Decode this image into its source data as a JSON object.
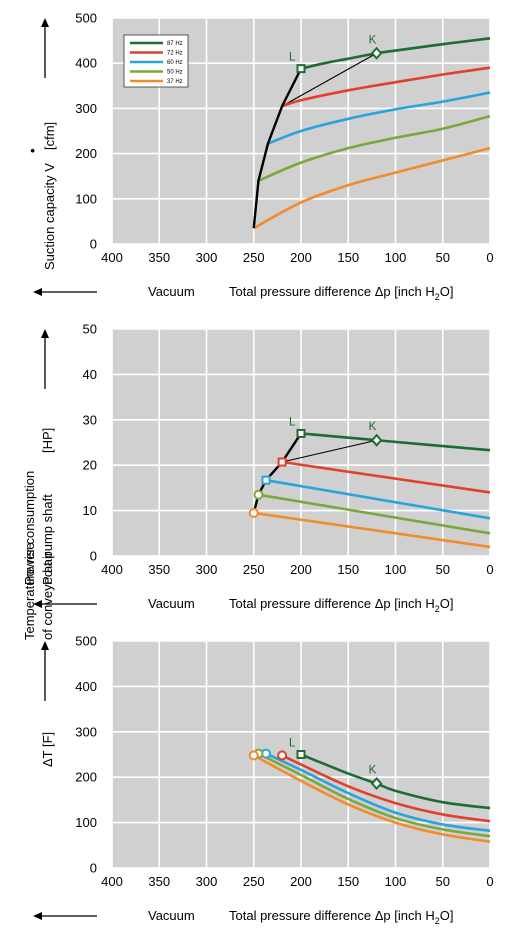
{
  "colors": {
    "87 Hz": "#1e6b34",
    "72 Hz": "#e2402d",
    "60 Hz": "#2aa3dc",
    "50 Hz": "#7aa83c",
    "37 Hz": "#f28a2e",
    "plot_bg": "#d0d0d0",
    "grid": "#ffffff",
    "label_green": "#1e6b34"
  },
  "legend": [
    "87 Hz",
    "72 Hz",
    "60 Hz",
    "50 Hz",
    "37 Hz"
  ],
  "common": {
    "vacuum_label": "Vacuum",
    "xlabel_prefix": "Total pressure difference Δp [inch H",
    "xlabel_sub": "2",
    "xlabel_suffix": "O]",
    "point_L": "L",
    "point_K": "K"
  },
  "chart_data": [
    {
      "type": "line",
      "ylabel": "Suction capacity V",
      "ylabel_dot": "•",
      "yunit": "[cfm]",
      "xlim": [
        400,
        0
      ],
      "ylim": [
        0,
        500
      ],
      "xticks": [
        400,
        350,
        300,
        250,
        200,
        150,
        100,
        50,
        0
      ],
      "yticks": [
        0,
        100,
        200,
        300,
        400,
        500
      ],
      "series": [
        {
          "name": "87 Hz",
          "x": [
            200,
            175,
            150,
            120,
            100,
            50,
            0
          ],
          "y": [
            388,
            400,
            410,
            422,
            428,
            442,
            455
          ]
        },
        {
          "name": "72 Hz",
          "x": [
            220,
            200,
            150,
            100,
            50,
            0
          ],
          "y": [
            305,
            318,
            340,
            358,
            375,
            390
          ]
        },
        {
          "name": "60 Hz",
          "x": [
            235,
            200,
            150,
            100,
            50,
            0
          ],
          "y": [
            222,
            250,
            277,
            298,
            315,
            335
          ]
        },
        {
          "name": "50 Hz",
          "x": [
            245,
            200,
            150,
            100,
            50,
            0
          ],
          "y": [
            140,
            180,
            212,
            235,
            255,
            283
          ]
        },
        {
          "name": "37 Hz",
          "x": [
            250,
            200,
            150,
            100,
            50,
            0
          ],
          "y": [
            35,
            92,
            130,
            158,
            185,
            212
          ]
        }
      ],
      "envelope": {
        "x": [
          250,
          245,
          235,
          220,
          200
        ],
        "y": [
          35,
          140,
          222,
          305,
          388
        ]
      },
      "thin_lines": [
        {
          "x": [
            220,
            200
          ],
          "y": [
            305,
            388
          ]
        },
        {
          "x": [
            220,
            120
          ],
          "y": [
            305,
            422
          ]
        }
      ],
      "markers": [
        {
          "label": "L",
          "x": 200,
          "y": 388,
          "shape": "square",
          "color": "87 Hz"
        },
        {
          "label": "K",
          "x": 120,
          "y": 422,
          "shape": "diamond",
          "color": "87 Hz"
        }
      ],
      "legend_placement": "top-left"
    },
    {
      "type": "line",
      "ylabel_line1": "Power consumption",
      "ylabel_line2": "P at pump shaft",
      "yunit": "[HP]",
      "xlim": [
        400,
        0
      ],
      "ylim": [
        0,
        50
      ],
      "xticks": [
        400,
        350,
        300,
        250,
        200,
        150,
        100,
        50,
        0
      ],
      "yticks": [
        0,
        10,
        20,
        30,
        40,
        50
      ],
      "series": [
        {
          "name": "87 Hz",
          "x": [
            200,
            120,
            0
          ],
          "y": [
            27,
            25.5,
            23.3
          ]
        },
        {
          "name": "72 Hz",
          "x": [
            220,
            0
          ],
          "y": [
            20.7,
            14
          ]
        },
        {
          "name": "60 Hz",
          "x": [
            237,
            0
          ],
          "y": [
            16.7,
            8.3
          ]
        },
        {
          "name": "50 Hz",
          "x": [
            245,
            0
          ],
          "y": [
            13.5,
            5
          ]
        },
        {
          "name": "37 Hz",
          "x": [
            250,
            0
          ],
          "y": [
            9.5,
            2
          ]
        }
      ],
      "envelope": {
        "x": [
          250,
          245,
          237,
          220,
          200
        ],
        "y": [
          9.5,
          13.5,
          16.7,
          20.7,
          27
        ]
      },
      "thin_lines": [
        {
          "x": [
            220,
            200
          ],
          "y": [
            20.7,
            27
          ]
        },
        {
          "x": [
            220,
            120
          ],
          "y": [
            20.7,
            25.5
          ]
        }
      ],
      "markers": [
        {
          "label": "L",
          "x": 200,
          "y": 27,
          "shape": "square",
          "color": "87 Hz"
        },
        {
          "label": "K",
          "x": 120,
          "y": 25.5,
          "shape": "diamond",
          "color": "87 Hz"
        },
        {
          "label": "",
          "x": 220,
          "y": 20.7,
          "shape": "square",
          "color": "72 Hz"
        },
        {
          "label": "",
          "x": 237,
          "y": 16.7,
          "shape": "square",
          "color": "60 Hz"
        },
        {
          "label": "",
          "x": 245,
          "y": 13.5,
          "shape": "circle",
          "color": "50 Hz"
        },
        {
          "label": "",
          "x": 250,
          "y": 9.5,
          "shape": "circle",
          "color": "37 Hz"
        }
      ]
    },
    {
      "type": "line",
      "ylabel_line1": "Temperature rise",
      "ylabel_line2": "of conveyed air",
      "yunit": "ΔT [F]",
      "xlim": [
        400,
        0
      ],
      "ylim": [
        0,
        500
      ],
      "xticks": [
        400,
        350,
        300,
        250,
        200,
        150,
        100,
        50,
        0
      ],
      "yticks": [
        0,
        100,
        200,
        300,
        400,
        500
      ],
      "series": [
        {
          "name": "87 Hz",
          "x": [
            200,
            150,
            120,
            100,
            50,
            0
          ],
          "y": [
            250,
            208,
            186,
            170,
            145,
            132
          ]
        },
        {
          "name": "72 Hz",
          "x": [
            220,
            200,
            150,
            100,
            50,
            0
          ],
          "y": [
            248,
            228,
            180,
            143,
            118,
            103
          ]
        },
        {
          "name": "60 Hz",
          "x": [
            237,
            200,
            150,
            100,
            50,
            0
          ],
          "y": [
            252,
            216,
            165,
            122,
            96,
            82
          ]
        },
        {
          "name": "50 Hz",
          "x": [
            245,
            200,
            150,
            100,
            50,
            0
          ],
          "y": [
            252,
            205,
            152,
            110,
            85,
            70
          ]
        },
        {
          "name": "37 Hz",
          "x": [
            250,
            200,
            150,
            100,
            50,
            0
          ],
          "y": [
            248,
            192,
            140,
            100,
            74,
            58
          ]
        }
      ],
      "markers": [
        {
          "label": "L",
          "x": 200,
          "y": 250,
          "shape": "square",
          "color": "87 Hz"
        },
        {
          "label": "K",
          "x": 120,
          "y": 186,
          "shape": "diamond",
          "color": "87 Hz"
        },
        {
          "label": "",
          "x": 220,
          "y": 248,
          "shape": "circle",
          "color": "72 Hz"
        },
        {
          "label": "",
          "x": 237,
          "y": 252,
          "shape": "circle",
          "color": "60 Hz"
        },
        {
          "label": "",
          "x": 245,
          "y": 252,
          "shape": "circle",
          "color": "50 Hz"
        },
        {
          "label": "",
          "x": 250,
          "y": 248,
          "shape": "circle",
          "color": "37 Hz"
        }
      ]
    }
  ]
}
